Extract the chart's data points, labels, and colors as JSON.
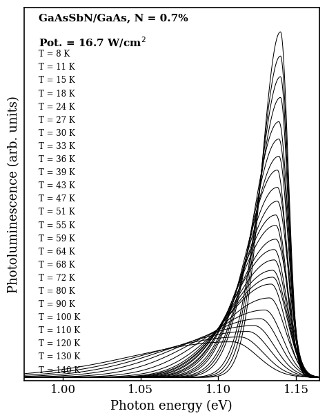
{
  "title_line1": "GaAsSbN/GaAs, N = 0.7%",
  "xlabel": "Photon energy (eV)",
  "ylabel": "Photoluminescence (arb. units)",
  "xmin": 0.975,
  "xmax": 1.165,
  "temperatures": [
    8,
    11,
    15,
    18,
    24,
    27,
    30,
    33,
    36,
    39,
    43,
    47,
    51,
    55,
    59,
    64,
    68,
    72,
    80,
    90,
    100,
    110,
    120,
    130,
    140
  ],
  "peak_positions": [
    1.14,
    1.14,
    1.14,
    1.14,
    1.139,
    1.139,
    1.139,
    1.138,
    1.138,
    1.138,
    1.137,
    1.137,
    1.137,
    1.136,
    1.136,
    1.135,
    1.135,
    1.134,
    1.133,
    1.13,
    1.127,
    1.123,
    1.119,
    1.114,
    1.109
  ],
  "peak_heights": [
    1.0,
    0.93,
    0.87,
    0.81,
    0.74,
    0.69,
    0.64,
    0.6,
    0.55,
    0.51,
    0.47,
    0.44,
    0.4,
    0.37,
    0.34,
    0.31,
    0.29,
    0.27,
    0.23,
    0.195,
    0.17,
    0.15,
    0.133,
    0.117,
    0.103
  ],
  "low_energy_widths": [
    0.012,
    0.013,
    0.014,
    0.015,
    0.017,
    0.018,
    0.019,
    0.02,
    0.021,
    0.022,
    0.023,
    0.024,
    0.025,
    0.026,
    0.027,
    0.028,
    0.029,
    0.03,
    0.033,
    0.037,
    0.042,
    0.047,
    0.052,
    0.057,
    0.063
  ],
  "high_energy_widths": [
    0.005,
    0.005,
    0.005,
    0.005,
    0.006,
    0.006,
    0.006,
    0.006,
    0.007,
    0.007,
    0.007,
    0.007,
    0.008,
    0.008,
    0.008,
    0.009,
    0.009,
    0.009,
    0.01,
    0.011,
    0.012,
    0.013,
    0.014,
    0.015,
    0.016
  ],
  "legend_labels": [
    "T = 8 K",
    "T = 11 K",
    "T = 15 K",
    "T = 18 K",
    "T = 24 K",
    "T = 27 K",
    "T = 30 K",
    "T = 33 K",
    "T = 36 K",
    "T = 39 K",
    "T = 43 K",
    "T = 47 K",
    "T = 51 K",
    "T = 55 K",
    "T = 59 K",
    "T = 64 K",
    "T = 68 K",
    "T = 72 K",
    "T = 80 K",
    "T = 90 K",
    "T = 100 K",
    "T = 110 K",
    "T = 120 K",
    "T = 130 K",
    "T = 140 K"
  ],
  "line_color": "#000000",
  "background_color": "#ffffff",
  "tick_label_fontsize": 12,
  "axis_label_fontsize": 13,
  "annotation_fontsize": 11
}
